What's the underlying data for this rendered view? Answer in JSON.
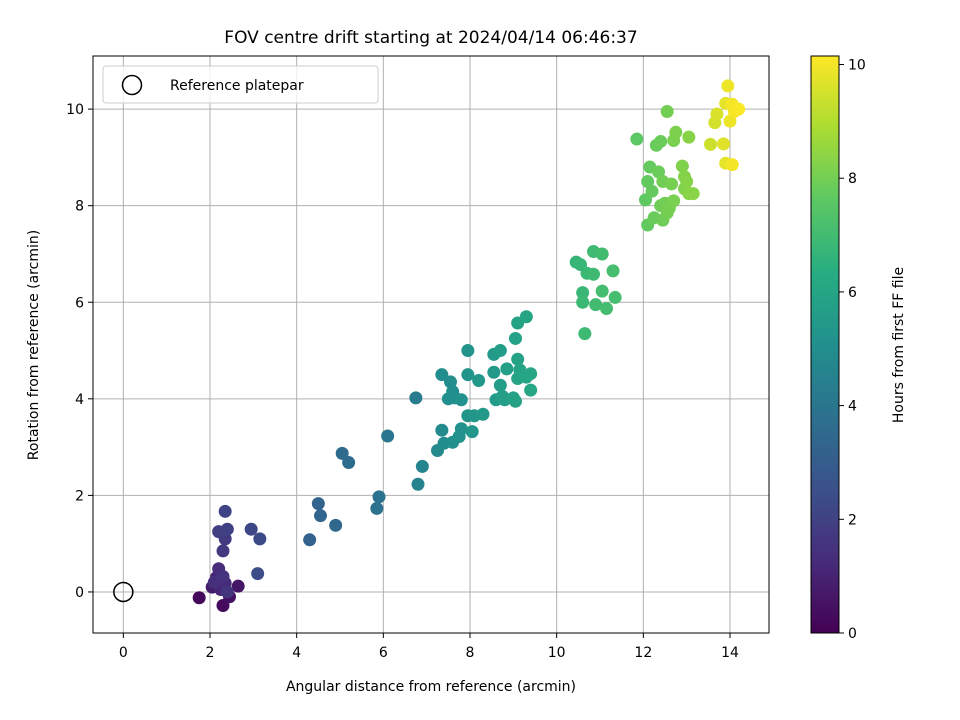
{
  "chart_data": {
    "type": "scatter",
    "title": "FOV centre drift starting at 2024/04/14 06:46:37",
    "xlabel": "Angular distance from reference (arcmin)",
    "ylabel": "Rotation from reference (arcmin)",
    "xlim": [
      -0.7,
      14.9
    ],
    "ylim": [
      -0.85,
      11.1
    ],
    "xticks": [
      0,
      2,
      4,
      6,
      8,
      10,
      12,
      14
    ],
    "yticks": [
      0,
      2,
      4,
      6,
      8,
      10
    ],
    "grid": true,
    "legend": {
      "location": "top-left",
      "entries": [
        "Reference platepar"
      ]
    },
    "reference_point": {
      "x": 0,
      "y": 0,
      "label": "Reference platepar",
      "marker": "open-circle"
    },
    "colorbar": {
      "label": "Hours from first FF file",
      "range": [
        0,
        10.15
      ],
      "ticks": [
        0,
        2,
        4,
        6,
        8,
        10
      ],
      "colormap": "viridis"
    },
    "series": [
      {
        "points": [
          {
            "x": 1.75,
            "y": -0.12,
            "c": 0.2
          },
          {
            "x": 2.3,
            "y": -0.28,
            "c": 0.3
          },
          {
            "x": 2.45,
            "y": -0.1,
            "c": 0.5
          },
          {
            "x": 2.65,
            "y": 0.12,
            "c": 0.6
          },
          {
            "x": 2.05,
            "y": 0.1,
            "c": 0.8
          },
          {
            "x": 2.15,
            "y": 0.3,
            "c": 1.0
          },
          {
            "x": 2.25,
            "y": 0.05,
            "c": 1.1
          },
          {
            "x": 2.35,
            "y": 0.18,
            "c": 1.2
          },
          {
            "x": 2.2,
            "y": 0.48,
            "c": 1.3
          },
          {
            "x": 2.1,
            "y": 0.2,
            "c": 1.4
          },
          {
            "x": 2.3,
            "y": 0.32,
            "c": 1.5
          },
          {
            "x": 2.4,
            "y": 0.0,
            "c": 1.6
          },
          {
            "x": 2.3,
            "y": 0.85,
            "c": 1.7
          },
          {
            "x": 2.35,
            "y": 1.1,
            "c": 1.8
          },
          {
            "x": 2.2,
            "y": 1.25,
            "c": 1.9
          },
          {
            "x": 2.4,
            "y": 1.3,
            "c": 2.0
          },
          {
            "x": 2.35,
            "y": 1.67,
            "c": 2.1
          },
          {
            "x": 2.95,
            "y": 1.3,
            "c": 2.2
          },
          {
            "x": 3.15,
            "y": 1.1,
            "c": 2.3
          },
          {
            "x": 3.1,
            "y": 0.38,
            "c": 2.4
          },
          {
            "x": 4.3,
            "y": 1.08,
            "c": 3.2
          },
          {
            "x": 4.5,
            "y": 1.83,
            "c": 3.3
          },
          {
            "x": 4.55,
            "y": 1.58,
            "c": 3.35
          },
          {
            "x": 4.9,
            "y": 1.38,
            "c": 3.45
          },
          {
            "x": 5.05,
            "y": 2.87,
            "c": 3.55
          },
          {
            "x": 5.2,
            "y": 2.68,
            "c": 3.6
          },
          {
            "x": 5.85,
            "y": 1.73,
            "c": 3.8
          },
          {
            "x": 5.9,
            "y": 1.97,
            "c": 3.85
          },
          {
            "x": 6.1,
            "y": 3.23,
            "c": 4.0
          },
          {
            "x": 6.75,
            "y": 4.02,
            "c": 4.2
          },
          {
            "x": 6.8,
            "y": 2.23,
            "c": 4.5
          },
          {
            "x": 6.9,
            "y": 2.6,
            "c": 4.6
          },
          {
            "x": 7.25,
            "y": 2.93,
            "c": 4.8
          },
          {
            "x": 7.35,
            "y": 3.35,
            "c": 4.85
          },
          {
            "x": 7.4,
            "y": 3.08,
            "c": 4.9
          },
          {
            "x": 7.35,
            "y": 4.5,
            "c": 4.95
          },
          {
            "x": 7.55,
            "y": 4.35,
            "c": 5.0
          },
          {
            "x": 7.5,
            "y": 4.0,
            "c": 5.0
          },
          {
            "x": 7.6,
            "y": 4.15,
            "c": 5.05
          },
          {
            "x": 7.65,
            "y": 4.02,
            "c": 5.05
          },
          {
            "x": 7.6,
            "y": 3.1,
            "c": 5.1
          },
          {
            "x": 7.75,
            "y": 3.22,
            "c": 5.15
          },
          {
            "x": 7.8,
            "y": 3.38,
            "c": 5.15
          },
          {
            "x": 7.8,
            "y": 3.98,
            "c": 5.2
          },
          {
            "x": 7.95,
            "y": 5.0,
            "c": 5.25
          },
          {
            "x": 7.95,
            "y": 4.5,
            "c": 5.25
          },
          {
            "x": 7.95,
            "y": 3.65,
            "c": 5.3
          },
          {
            "x": 8.05,
            "y": 3.32,
            "c": 5.35
          },
          {
            "x": 8.1,
            "y": 3.65,
            "c": 5.35
          },
          {
            "x": 8.2,
            "y": 4.38,
            "c": 5.4
          },
          {
            "x": 8.3,
            "y": 3.68,
            "c": 5.45
          },
          {
            "x": 8.55,
            "y": 4.92,
            "c": 5.5
          },
          {
            "x": 8.55,
            "y": 4.55,
            "c": 5.5
          },
          {
            "x": 8.6,
            "y": 3.98,
            "c": 5.55
          },
          {
            "x": 8.7,
            "y": 5.0,
            "c": 5.6
          },
          {
            "x": 8.7,
            "y": 4.28,
            "c": 5.65
          },
          {
            "x": 8.75,
            "y": 4.05,
            "c": 5.7
          },
          {
            "x": 8.8,
            "y": 3.98,
            "c": 5.7
          },
          {
            "x": 8.85,
            "y": 4.62,
            "c": 5.75
          },
          {
            "x": 9.0,
            "y": 4.02,
            "c": 5.8
          },
          {
            "x": 9.05,
            "y": 5.25,
            "c": 5.8
          },
          {
            "x": 9.05,
            "y": 3.95,
            "c": 5.85
          },
          {
            "x": 9.1,
            "y": 4.82,
            "c": 5.85
          },
          {
            "x": 9.1,
            "y": 5.57,
            "c": 5.9
          },
          {
            "x": 9.1,
            "y": 4.42,
            "c": 5.9
          },
          {
            "x": 9.15,
            "y": 4.6,
            "c": 5.95
          },
          {
            "x": 9.2,
            "y": 4.5,
            "c": 5.95
          },
          {
            "x": 9.3,
            "y": 4.45,
            "c": 6.0
          },
          {
            "x": 9.3,
            "y": 5.7,
            "c": 6.0
          },
          {
            "x": 9.4,
            "y": 4.52,
            "c": 6.05
          },
          {
            "x": 9.4,
            "y": 4.18,
            "c": 6.05
          },
          {
            "x": 10.45,
            "y": 6.83,
            "c": 6.7
          },
          {
            "x": 10.55,
            "y": 6.78,
            "c": 6.75
          },
          {
            "x": 10.6,
            "y": 6.2,
            "c": 6.8
          },
          {
            "x": 10.6,
            "y": 6.0,
            "c": 6.85
          },
          {
            "x": 10.7,
            "y": 6.6,
            "c": 6.85
          },
          {
            "x": 10.65,
            "y": 5.35,
            "c": 6.9
          },
          {
            "x": 10.85,
            "y": 6.58,
            "c": 6.95
          },
          {
            "x": 10.85,
            "y": 7.05,
            "c": 6.95
          },
          {
            "x": 10.9,
            "y": 5.95,
            "c": 7.0
          },
          {
            "x": 11.05,
            "y": 7.0,
            "c": 7.0
          },
          {
            "x": 11.05,
            "y": 6.23,
            "c": 7.05
          },
          {
            "x": 11.15,
            "y": 5.87,
            "c": 7.05
          },
          {
            "x": 11.3,
            "y": 6.65,
            "c": 7.1
          },
          {
            "x": 11.35,
            "y": 6.1,
            "c": 7.1
          },
          {
            "x": 11.85,
            "y": 9.38,
            "c": 7.6
          },
          {
            "x": 12.05,
            "y": 8.12,
            "c": 7.65
          },
          {
            "x": 12.1,
            "y": 8.5,
            "c": 7.7
          },
          {
            "x": 12.1,
            "y": 7.6,
            "c": 7.7
          },
          {
            "x": 12.15,
            "y": 8.8,
            "c": 7.75
          },
          {
            "x": 12.2,
            "y": 8.3,
            "c": 7.75
          },
          {
            "x": 12.25,
            "y": 7.75,
            "c": 7.8
          },
          {
            "x": 12.3,
            "y": 9.25,
            "c": 7.8
          },
          {
            "x": 12.35,
            "y": 8.7,
            "c": 7.85
          },
          {
            "x": 12.4,
            "y": 9.33,
            "c": 7.85
          },
          {
            "x": 12.4,
            "y": 8.0,
            "c": 7.9
          },
          {
            "x": 12.45,
            "y": 7.7,
            "c": 7.9
          },
          {
            "x": 12.45,
            "y": 8.5,
            "c": 7.95
          },
          {
            "x": 12.5,
            "y": 8.05,
            "c": 7.95
          },
          {
            "x": 12.55,
            "y": 7.85,
            "c": 8.0
          },
          {
            "x": 12.55,
            "y": 9.95,
            "c": 8.0
          },
          {
            "x": 12.6,
            "y": 7.95,
            "c": 8.05
          },
          {
            "x": 12.65,
            "y": 8.45,
            "c": 8.05
          },
          {
            "x": 12.7,
            "y": 8.1,
            "c": 8.1
          },
          {
            "x": 12.7,
            "y": 9.35,
            "c": 8.1
          },
          {
            "x": 12.75,
            "y": 9.52,
            "c": 8.15
          },
          {
            "x": 12.9,
            "y": 8.82,
            "c": 8.2
          },
          {
            "x": 12.95,
            "y": 8.35,
            "c": 8.2
          },
          {
            "x": 12.95,
            "y": 8.6,
            "c": 8.25
          },
          {
            "x": 13.0,
            "y": 8.5,
            "c": 8.3
          },
          {
            "x": 13.05,
            "y": 9.42,
            "c": 8.3
          },
          {
            "x": 13.05,
            "y": 8.25,
            "c": 8.35
          },
          {
            "x": 13.15,
            "y": 8.25,
            "c": 8.35
          },
          {
            "x": 13.55,
            "y": 9.27,
            "c": 9.4
          },
          {
            "x": 13.65,
            "y": 9.72,
            "c": 9.5
          },
          {
            "x": 13.7,
            "y": 9.9,
            "c": 9.6
          },
          {
            "x": 13.85,
            "y": 9.28,
            "c": 9.7
          },
          {
            "x": 13.9,
            "y": 10.12,
            "c": 9.8
          },
          {
            "x": 13.9,
            "y": 8.88,
            "c": 9.8
          },
          {
            "x": 13.95,
            "y": 10.48,
            "c": 9.9
          },
          {
            "x": 14.0,
            "y": 9.75,
            "c": 9.9
          },
          {
            "x": 14.05,
            "y": 10.1,
            "c": 10.0
          },
          {
            "x": 14.05,
            "y": 8.85,
            "c": 10.0
          },
          {
            "x": 14.1,
            "y": 9.95,
            "c": 10.05
          },
          {
            "x": 14.2,
            "y": 10.0,
            "c": 10.1
          }
        ]
      }
    ]
  }
}
